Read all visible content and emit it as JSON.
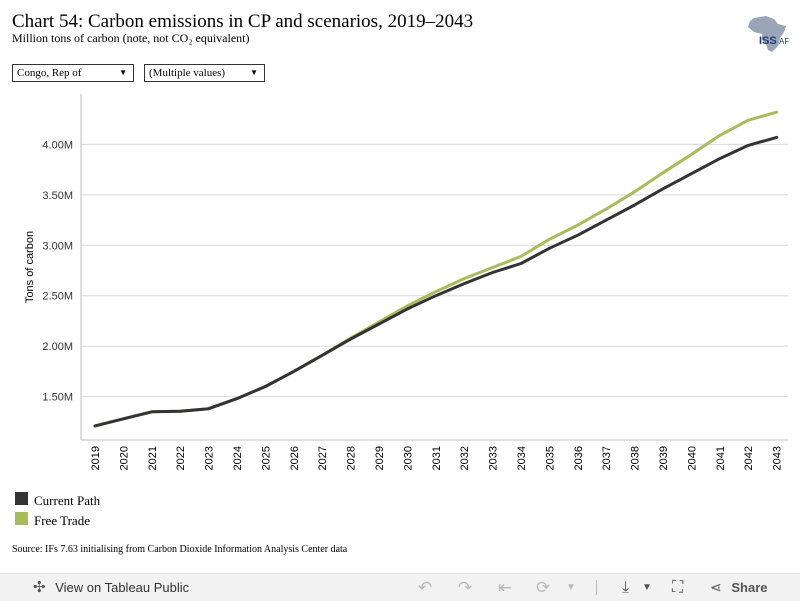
{
  "header": {
    "title": "Chart 54: Carbon emissions in CP and scenarios, 2019–2043",
    "subtitle": "Million tons of carbon (note, not CO₂ equivalent)",
    "logo_text": "ISS",
    "logo_suffix": "AF"
  },
  "filters": {
    "country": "Congo, Rep of",
    "scenario": "(Multiple values)"
  },
  "colors": {
    "current_path": "#333333",
    "free_trade": "#a9bc5c",
    "grid": "#d9d9d9"
  },
  "chart_data": {
    "type": "line",
    "title": "Chart 54: Carbon emissions in CP and scenarios, 2019–2043",
    "xlabel": "",
    "ylabel": "Tons of carbon",
    "x": [
      2019,
      2020,
      2021,
      2022,
      2023,
      2024,
      2025,
      2026,
      2027,
      2028,
      2029,
      2030,
      2031,
      2032,
      2033,
      2034,
      2035,
      2036,
      2037,
      2038,
      2039,
      2040,
      2041,
      2042,
      2043
    ],
    "yticks": [
      {
        "value": 1500000,
        "label": "1.50M"
      },
      {
        "value": 2000000,
        "label": "2.00M"
      },
      {
        "value": 2500000,
        "label": "2.50M"
      },
      {
        "value": 3000000,
        "label": "3.00M"
      },
      {
        "value": 3500000,
        "label": "3.50M"
      },
      {
        "value": 4000000,
        "label": "4.00M"
      }
    ],
    "ylim": [
      1070000,
      4500000
    ],
    "grid": true,
    "legend_position": "bottom-left",
    "series": [
      {
        "name": "Current Path",
        "values": [
          1210000,
          1280000,
          1350000,
          1355000,
          1380000,
          1480000,
          1600000,
          1750000,
          1910000,
          2070000,
          2220000,
          2370000,
          2500000,
          2620000,
          2730000,
          2820000,
          2970000,
          3100000,
          3250000,
          3400000,
          3560000,
          3710000,
          3860000,
          3990000,
          4070000
        ]
      },
      {
        "name": "Free Trade",
        "values": [
          1210000,
          1280000,
          1350000,
          1355000,
          1380000,
          1480000,
          1600000,
          1750000,
          1910000,
          2080000,
          2240000,
          2400000,
          2540000,
          2670000,
          2780000,
          2890000,
          3060000,
          3200000,
          3360000,
          3530000,
          3720000,
          3900000,
          4090000,
          4240000,
          4320000
        ]
      }
    ]
  },
  "legend": {
    "items": [
      {
        "label": "Current Path"
      },
      {
        "label": "Free Trade"
      }
    ]
  },
  "source": "Source: IFs 7.63 initialising from Carbon Dioxide Information Analysis Center data",
  "toolbar": {
    "view_label": "View on Tableau Public",
    "share_label": "Share"
  }
}
